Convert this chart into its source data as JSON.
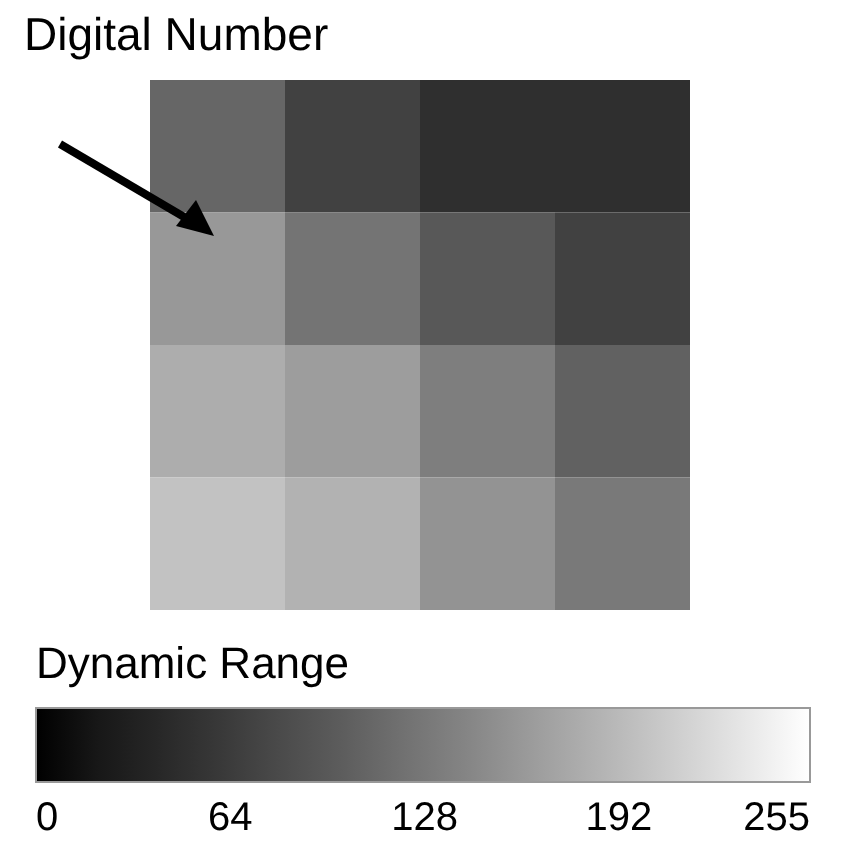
{
  "chart_data": {
    "type": "heatmap",
    "categories": [
      null,
      null,
      null,
      null
    ],
    "y_categories": [
      null,
      null,
      null,
      null
    ],
    "cells": [
      [
        110,
        70,
        50,
        50
      ],
      [
        160,
        125,
        95,
        70
      ],
      [
        180,
        165,
        135,
        105
      ],
      [
        200,
        185,
        155,
        130
      ]
    ],
    "clim": [
      0,
      255
    ],
    "cticks": [
      0,
      64,
      128,
      192,
      255
    ],
    "clabel": "Dynamic Range",
    "annotations": [
      "Digital Number"
    ]
  }
}
